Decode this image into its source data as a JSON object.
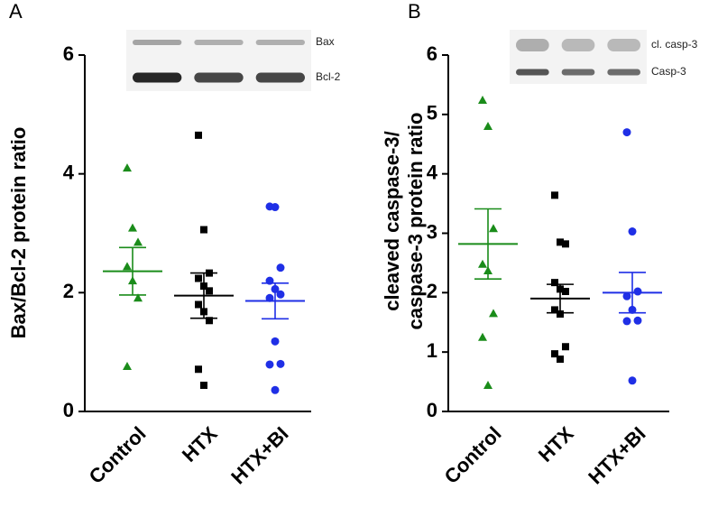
{
  "chart_data": [
    {
      "type": "scatter",
      "panel_label": "A",
      "ylabel": [
        "Bax/Bcl-2 protein ratio"
      ],
      "categories": [
        "Control",
        "HTX",
        "HTX+BI"
      ],
      "blot_labels": [
        "Bax",
        "Bcl-2"
      ],
      "ylim": [
        0,
        6
      ],
      "yticks": [
        0,
        2,
        4,
        6
      ],
      "series": [
        {
          "color": "#1a8c1a",
          "marker": "triangle",
          "values": [
            4.1,
            3.09,
            2.85,
            2.44,
            2.2,
            1.91,
            0.76
          ],
          "mean": 2.36,
          "sem": 0.4
        },
        {
          "color": "#000000",
          "marker": "square",
          "values": [
            4.65,
            3.06,
            2.33,
            2.24,
            2.11,
            2.03,
            1.8,
            1.68,
            1.53,
            0.71,
            0.44
          ],
          "mean": 1.95,
          "sem": 0.38
        },
        {
          "color": "#1f2fe6",
          "marker": "circle",
          "values": [
            3.45,
            3.44,
            2.42,
            2.2,
            2.06,
            1.97,
            1.91,
            1.18,
            0.8,
            0.79,
            0.36
          ],
          "mean": 1.86,
          "sem": 0.3
        }
      ]
    },
    {
      "type": "scatter",
      "panel_label": "B",
      "ylabel": [
        "cleaved caspase-3/",
        "caspase-3 protein ratio"
      ],
      "categories": [
        "Control",
        "HTX",
        "HTX+BI"
      ],
      "blot_labels": [
        "cl. casp-3",
        "Casp-3"
      ],
      "ylim": [
        0,
        6
      ],
      "yticks": [
        0,
        1,
        2,
        3,
        4,
        5,
        6
      ],
      "series": [
        {
          "color": "#1a8c1a",
          "marker": "triangle",
          "values": [
            5.24,
            4.8,
            3.08,
            2.48,
            2.37,
            1.65,
            1.25,
            0.44
          ],
          "mean": 2.82,
          "sem": 0.59
        },
        {
          "color": "#000000",
          "marker": "square",
          "values": [
            3.64,
            2.85,
            2.82,
            2.17,
            2.06,
            2.02,
            1.71,
            1.64,
            1.09,
            0.97,
            0.88
          ],
          "mean": 1.9,
          "sem": 0.24
        },
        {
          "color": "#1f2fe6",
          "marker": "circle",
          "values": [
            4.7,
            3.03,
            2.02,
            1.94,
            1.71,
            1.53,
            1.52,
            0.52
          ],
          "mean": 2.0,
          "sem": 0.34
        }
      ]
    }
  ]
}
